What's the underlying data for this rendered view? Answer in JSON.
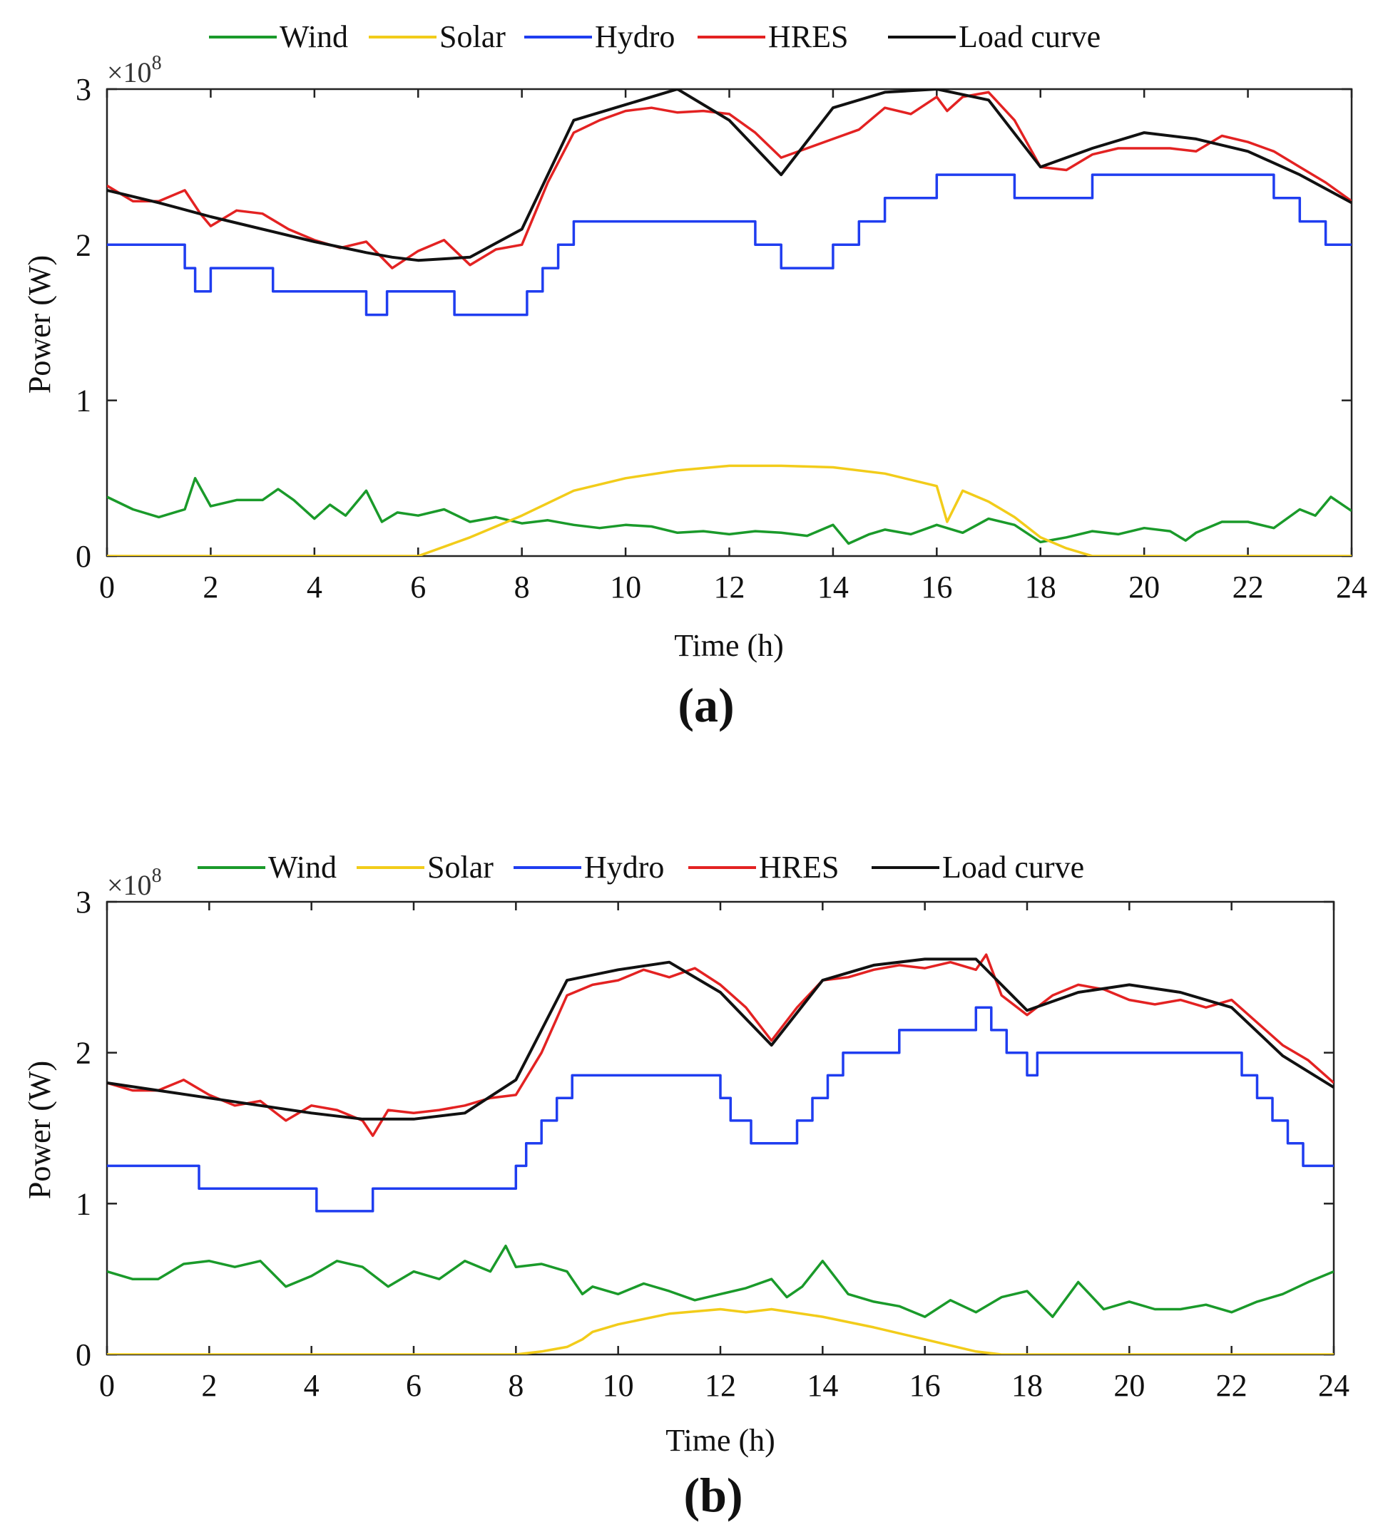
{
  "chart_data": [
    {
      "type": "line",
      "panel_label": "(a)",
      "xlabel": "Time (h)",
      "ylabel": "Power (W)",
      "y_multiplier": {
        "base": "×10",
        "exponent": "8"
      },
      "xlim": [
        0,
        24
      ],
      "ylim": [
        0,
        3
      ],
      "x_ticks": [
        "0",
        "2",
        "4",
        "6",
        "8",
        "10",
        "12",
        "14",
        "16",
        "18",
        "20",
        "22",
        "24"
      ],
      "y_ticks": [
        "0",
        "1",
        "2",
        "3"
      ],
      "legend": [
        "Wind",
        "Solar",
        "Hydro",
        "HRES",
        "Load curve"
      ],
      "legend_position": "top",
      "series": [
        {
          "name": "Wind",
          "color": "#1a9a2a",
          "step": false,
          "x": [
            0,
            0.5,
            1,
            1.5,
            1.7,
            2,
            2.5,
            3,
            3.3,
            3.6,
            4,
            4.3,
            4.6,
            5,
            5.3,
            5.6,
            6,
            6.5,
            7,
            7.5,
            8,
            8.5,
            9,
            9.5,
            10,
            10.5,
            11,
            11.5,
            12,
            12.5,
            13,
            13.5,
            14,
            14.3,
            14.7,
            15,
            15.5,
            16,
            16.5,
            17,
            17.5,
            18,
            18.5,
            19,
            19.5,
            20,
            20.5,
            20.8,
            21,
            21.5,
            22,
            22.5,
            23,
            23.3,
            23.6,
            24
          ],
          "y": [
            0.38,
            0.3,
            0.25,
            0.3,
            0.5,
            0.32,
            0.36,
            0.36,
            0.43,
            0.36,
            0.24,
            0.33,
            0.26,
            0.42,
            0.22,
            0.28,
            0.26,
            0.3,
            0.22,
            0.25,
            0.21,
            0.23,
            0.2,
            0.18,
            0.2,
            0.19,
            0.15,
            0.16,
            0.14,
            0.16,
            0.15,
            0.13,
            0.2,
            0.08,
            0.14,
            0.17,
            0.14,
            0.2,
            0.15,
            0.24,
            0.2,
            0.09,
            0.12,
            0.16,
            0.14,
            0.18,
            0.16,
            0.1,
            0.15,
            0.22,
            0.22,
            0.18,
            0.3,
            0.26,
            0.38,
            0.29
          ]
        },
        {
          "name": "Solar",
          "color": "#f2cc1a",
          "step": false,
          "x": [
            0,
            6,
            7,
            8,
            9,
            10,
            11,
            12,
            13,
            14,
            15,
            16,
            16.2,
            16.5,
            17,
            17.5,
            18,
            18.5,
            19,
            24
          ],
          "y": [
            0,
            0,
            0.12,
            0.26,
            0.42,
            0.5,
            0.55,
            0.58,
            0.58,
            0.57,
            0.53,
            0.45,
            0.22,
            0.42,
            0.35,
            0.25,
            0.12,
            0.05,
            0,
            0
          ]
        },
        {
          "name": "Hydro",
          "color": "#1f3df0",
          "step": true,
          "x": [
            0,
            1.5,
            1.7,
            2,
            3.2,
            5,
            5.4,
            6.7,
            7,
            8.1,
            8.4,
            8.7,
            9,
            9.5,
            12,
            12.5,
            13,
            13.5,
            14,
            14.5,
            15,
            16,
            17,
            17.5,
            18,
            19,
            19.5,
            20,
            22.5,
            23,
            23.5,
            24
          ],
          "y": [
            2.0,
            1.85,
            1.7,
            1.85,
            1.7,
            1.55,
            1.7,
            1.55,
            1.55,
            1.7,
            1.85,
            2.0,
            2.15,
            2.15,
            2.15,
            2.0,
            1.85,
            1.85,
            2.0,
            2.15,
            2.3,
            2.45,
            2.45,
            2.3,
            2.3,
            2.45,
            2.45,
            2.45,
            2.3,
            2.15,
            2.0,
            2.0
          ]
        },
        {
          "name": "HRES",
          "color": "#e32222",
          "step": false,
          "x": [
            0,
            0.5,
            1,
            1.5,
            1.8,
            2,
            2.5,
            3,
            3.5,
            4,
            4.5,
            5,
            5.5,
            6,
            6.5,
            7,
            7.5,
            8,
            8.5,
            9,
            9.5,
            10,
            10.5,
            11,
            11.5,
            12,
            12.5,
            13,
            13.5,
            14,
            14.5,
            15,
            15.5,
            16,
            16.2,
            16.5,
            17,
            17.5,
            18,
            18.5,
            19,
            19.5,
            20,
            20.5,
            21,
            21.5,
            22,
            22.5,
            23,
            23.5,
            24
          ],
          "y": [
            2.38,
            2.28,
            2.28,
            2.35,
            2.2,
            2.12,
            2.22,
            2.2,
            2.1,
            2.03,
            1.98,
            2.02,
            1.85,
            1.96,
            2.03,
            1.87,
            1.97,
            2.0,
            2.4,
            2.72,
            2.8,
            2.86,
            2.88,
            2.85,
            2.86,
            2.84,
            2.72,
            2.56,
            2.62,
            2.68,
            2.74,
            2.88,
            2.84,
            2.95,
            2.86,
            2.95,
            2.98,
            2.8,
            2.5,
            2.48,
            2.58,
            2.62,
            2.62,
            2.62,
            2.6,
            2.7,
            2.66,
            2.6,
            2.5,
            2.4,
            2.28
          ]
        },
        {
          "name": "Load curve",
          "color": "#111111",
          "step": false,
          "x": [
            0,
            1,
            2,
            3,
            4,
            5,
            5.5,
            6,
            7,
            8,
            9,
            10,
            11,
            12,
            13,
            14,
            15,
            16,
            17,
            18,
            19,
            20,
            21,
            22,
            23,
            24
          ],
          "y": [
            2.35,
            2.27,
            2.18,
            2.1,
            2.02,
            1.95,
            1.92,
            1.9,
            1.92,
            2.1,
            2.8,
            2.9,
            3.0,
            2.8,
            2.45,
            2.88,
            2.98,
            3.0,
            2.93,
            2.5,
            2.62,
            2.72,
            2.68,
            2.6,
            2.45,
            2.27
          ]
        }
      ]
    },
    {
      "type": "line",
      "panel_label": "(b)",
      "xlabel": "Time (h)",
      "ylabel": "Power (W)",
      "y_multiplier": {
        "base": "×10",
        "exponent": "8"
      },
      "xlim": [
        0,
        24
      ],
      "ylim": [
        0,
        3
      ],
      "x_ticks": [
        "0",
        "2",
        "4",
        "6",
        "8",
        "10",
        "12",
        "14",
        "16",
        "18",
        "20",
        "22",
        "24"
      ],
      "y_ticks": [
        "0",
        "1",
        "2",
        "3"
      ],
      "legend": [
        "Wind",
        "Solar",
        "Hydro",
        "HRES",
        "Load curve"
      ],
      "legend_position": "top",
      "series": [
        {
          "name": "Wind",
          "color": "#1a9a2a",
          "step": false,
          "x": [
            0,
            0.5,
            1,
            1.5,
            2,
            2.5,
            3,
            3.5,
            4,
            4.5,
            5,
            5.5,
            6,
            6.5,
            7,
            7.5,
            7.8,
            8,
            8.5,
            9,
            9.3,
            9.5,
            10,
            10.5,
            11,
            11.5,
            12,
            12.5,
            13,
            13.3,
            13.6,
            14,
            14.5,
            15,
            15.5,
            16,
            16.5,
            17,
            17.5,
            18,
            18.5,
            19,
            19.5,
            20,
            20.5,
            21,
            21.5,
            22,
            22.5,
            23,
            23.5,
            24
          ],
          "y": [
            0.55,
            0.5,
            0.5,
            0.6,
            0.62,
            0.58,
            0.62,
            0.45,
            0.52,
            0.62,
            0.58,
            0.45,
            0.55,
            0.5,
            0.62,
            0.55,
            0.72,
            0.58,
            0.6,
            0.55,
            0.4,
            0.45,
            0.4,
            0.47,
            0.42,
            0.36,
            0.4,
            0.44,
            0.5,
            0.38,
            0.45,
            0.62,
            0.4,
            0.35,
            0.32,
            0.25,
            0.36,
            0.28,
            0.38,
            0.42,
            0.25,
            0.48,
            0.3,
            0.35,
            0.3,
            0.3,
            0.33,
            0.28,
            0.35,
            0.4,
            0.48,
            0.55
          ]
        },
        {
          "name": "Solar",
          "color": "#f2cc1a",
          "step": false,
          "x": [
            0,
            8,
            8.5,
            9,
            9.3,
            9.5,
            10,
            11,
            12,
            12.5,
            13,
            14,
            15,
            16,
            17,
            17.5,
            24
          ],
          "y": [
            0,
            0,
            0.02,
            0.05,
            0.1,
            0.15,
            0.2,
            0.27,
            0.3,
            0.28,
            0.3,
            0.25,
            0.18,
            0.1,
            0.02,
            0,
            0
          ]
        },
        {
          "name": "Hydro",
          "color": "#1f3df0",
          "step": true,
          "x": [
            0,
            1.8,
            4.1,
            5.2,
            8.0,
            8.2,
            8.5,
            8.8,
            9.1,
            9.4,
            12,
            12.2,
            12.6,
            13,
            13.5,
            13.8,
            14.1,
            14.4,
            15,
            15.5,
            16,
            16.5,
            17,
            17.3,
            17.6,
            18.0,
            18.2,
            19,
            22.2,
            22.5,
            22.8,
            23.1,
            23.4,
            23.7,
            24
          ],
          "y": [
            1.25,
            1.1,
            0.95,
            1.1,
            1.25,
            1.4,
            1.55,
            1.7,
            1.85,
            1.85,
            1.7,
            1.55,
            1.4,
            1.4,
            1.55,
            1.7,
            1.85,
            2.0,
            2.0,
            2.15,
            2.15,
            2.15,
            2.3,
            2.15,
            2.0,
            1.85,
            2.0,
            2.0,
            1.85,
            1.7,
            1.55,
            1.4,
            1.25,
            1.25,
            1.25
          ]
        },
        {
          "name": "HRES",
          "color": "#e32222",
          "step": false,
          "x": [
            0,
            0.5,
            1,
            1.5,
            2,
            2.5,
            3,
            3.5,
            4,
            4.5,
            5,
            5.2,
            5.5,
            6,
            6.5,
            7,
            7.5,
            8,
            8.5,
            9,
            9.5,
            10,
            10.5,
            11,
            11.5,
            12,
            12.5,
            13,
            13.5,
            14,
            14.5,
            15,
            15.5,
            16,
            16.5,
            17,
            17.2,
            17.5,
            18,
            18.5,
            19,
            19.5,
            20,
            20.5,
            21,
            21.5,
            22,
            22.5,
            23,
            23.5,
            24
          ],
          "y": [
            1.8,
            1.75,
            1.75,
            1.82,
            1.72,
            1.65,
            1.68,
            1.55,
            1.65,
            1.62,
            1.55,
            1.45,
            1.62,
            1.6,
            1.62,
            1.65,
            1.7,
            1.72,
            2.0,
            2.38,
            2.45,
            2.48,
            2.55,
            2.5,
            2.56,
            2.45,
            2.3,
            2.08,
            2.3,
            2.48,
            2.5,
            2.55,
            2.58,
            2.56,
            2.6,
            2.55,
            2.65,
            2.38,
            2.25,
            2.38,
            2.45,
            2.42,
            2.35,
            2.32,
            2.35,
            2.3,
            2.35,
            2.2,
            2.05,
            1.95,
            1.8
          ]
        },
        {
          "name": "Load curve",
          "color": "#111111",
          "step": false,
          "x": [
            0,
            1,
            2,
            3,
            4,
            5,
            6,
            7,
            8,
            9,
            10,
            11,
            12,
            13,
            14,
            15,
            16,
            17,
            18,
            19,
            20,
            21,
            22,
            23,
            24
          ],
          "y": [
            1.8,
            1.75,
            1.7,
            1.65,
            1.6,
            1.56,
            1.56,
            1.6,
            1.82,
            2.48,
            2.55,
            2.6,
            2.4,
            2.05,
            2.48,
            2.58,
            2.62,
            2.62,
            2.28,
            2.4,
            2.45,
            2.4,
            2.3,
            1.98,
            1.77
          ]
        }
      ]
    }
  ]
}
